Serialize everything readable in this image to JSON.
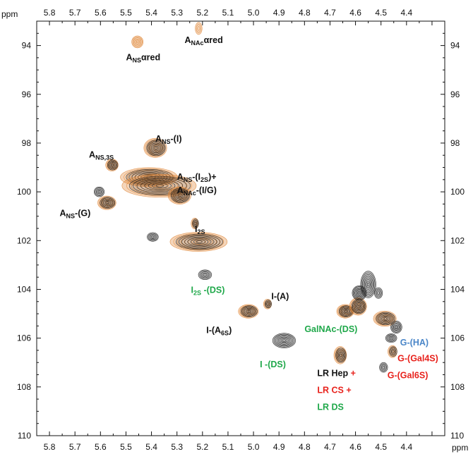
{
  "chart_data": {
    "type": "scatter",
    "title": "",
    "xlabel": "",
    "ylabel": "",
    "x_unit": "ppm",
    "y_unit": "ppm",
    "xlim": [
      5.85,
      4.25
    ],
    "ylim": [
      93,
      110
    ],
    "x_inverted": true,
    "y_inverted": true,
    "x_ticks": [
      "5.8",
      "5.7",
      "5.6",
      "5.5",
      "5.4",
      "5.3",
      "5.2",
      "5.1",
      "5.0",
      "4.9",
      "4.8",
      "4.7",
      "4.6",
      "4.5",
      "4.4"
    ],
    "y_ticks": [
      "94",
      "96",
      "98",
      "100",
      "102",
      "104",
      "106",
      "108",
      "110"
    ],
    "x_tick_values": [
      5.8,
      5.7,
      5.6,
      5.5,
      5.4,
      5.3,
      5.2,
      5.1,
      5.0,
      4.9,
      4.8,
      4.7,
      4.6,
      4.5,
      4.4
    ],
    "y_tick_values": [
      94,
      96,
      98,
      100,
      102,
      104,
      106,
      108,
      110
    ],
    "grid": false,
    "colors": {
      "spectrum_black": "#1a1a1a",
      "spectrum_orange": "#e0883a",
      "label_black": "#111111",
      "label_green": "#1fa84a",
      "label_red": "#e8221c",
      "label_blue": "#4a86c8"
    },
    "peaks": [
      {
        "x": 5.455,
        "y": 93.85,
        "w": 0.02,
        "h": 0.22,
        "overlay": "orange"
      },
      {
        "x": 5.215,
        "y": 93.3,
        "w": 0.012,
        "h": 0.22,
        "overlay": "orange"
      },
      {
        "x": 5.385,
        "y": 98.2,
        "w": 0.04,
        "h": 0.35,
        "overlay": "both"
      },
      {
        "x": 5.555,
        "y": 98.9,
        "w": 0.022,
        "h": 0.22,
        "overlay": "both"
      },
      {
        "x": 5.605,
        "y": 100.0,
        "w": 0.02,
        "h": 0.2,
        "overlay": "black"
      },
      {
        "x": 5.575,
        "y": 100.45,
        "w": 0.032,
        "h": 0.25,
        "overlay": "both"
      },
      {
        "x": 5.41,
        "y": 99.4,
        "w": 0.1,
        "h": 0.35,
        "overlay": "both"
      },
      {
        "x": 5.37,
        "y": 99.75,
        "w": 0.13,
        "h": 0.42,
        "overlay": "both"
      },
      {
        "x": 5.29,
        "y": 100.15,
        "w": 0.04,
        "h": 0.32,
        "overlay": "both"
      },
      {
        "x": 5.395,
        "y": 101.85,
        "w": 0.022,
        "h": 0.18,
        "overlay": "black"
      },
      {
        "x": 5.23,
        "y": 101.3,
        "w": 0.013,
        "h": 0.2,
        "overlay": "both"
      },
      {
        "x": 5.215,
        "y": 102.05,
        "w": 0.1,
        "h": 0.35,
        "overlay": "both"
      },
      {
        "x": 5.19,
        "y": 103.4,
        "w": 0.026,
        "h": 0.2,
        "overlay": "black"
      },
      {
        "x": 5.02,
        "y": 104.9,
        "w": 0.035,
        "h": 0.25,
        "overlay": "both"
      },
      {
        "x": 4.945,
        "y": 104.6,
        "w": 0.014,
        "h": 0.18,
        "overlay": "both"
      },
      {
        "x": 4.88,
        "y": 106.1,
        "w": 0.045,
        "h": 0.3,
        "overlay": "black"
      },
      {
        "x": 4.66,
        "y": 106.7,
        "w": 0.022,
        "h": 0.32,
        "overlay": "both"
      },
      {
        "x": 4.64,
        "y": 104.9,
        "w": 0.03,
        "h": 0.25,
        "overlay": "both"
      },
      {
        "x": 4.59,
        "y": 104.7,
        "w": 0.03,
        "h": 0.32,
        "overlay": "both"
      },
      {
        "x": 4.55,
        "y": 103.8,
        "w": 0.03,
        "h": 0.55,
        "overlay": "black"
      },
      {
        "x": 4.585,
        "y": 104.15,
        "w": 0.028,
        "h": 0.3,
        "overlay": "black"
      },
      {
        "x": 4.51,
        "y": 104.15,
        "w": 0.016,
        "h": 0.22,
        "overlay": "black"
      },
      {
        "x": 4.485,
        "y": 105.2,
        "w": 0.04,
        "h": 0.28,
        "overlay": "both"
      },
      {
        "x": 4.44,
        "y": 105.55,
        "w": 0.022,
        "h": 0.25,
        "overlay": "black"
      },
      {
        "x": 4.46,
        "y": 106.0,
        "w": 0.022,
        "h": 0.18,
        "overlay": "black"
      },
      {
        "x": 4.455,
        "y": 106.55,
        "w": 0.016,
        "h": 0.22,
        "overlay": "both"
      },
      {
        "x": 4.49,
        "y": 107.2,
        "w": 0.016,
        "h": 0.2,
        "overlay": "black"
      }
    ],
    "annotations": [
      {
        "x": 5.27,
        "y": 93.9,
        "parts": [
          [
            "A",
            ""
          ],
          [
            "NAc",
            "sub"
          ],
          [
            "αred",
            ""
          ]
        ],
        "color": "label_black"
      },
      {
        "x": 5.5,
        "y": 94.6,
        "parts": [
          [
            "A",
            ""
          ],
          [
            "NS",
            "sub"
          ],
          [
            "αred",
            ""
          ]
        ],
        "color": "label_black"
      },
      {
        "x": 5.385,
        "y": 97.95,
        "parts": [
          [
            "A",
            ""
          ],
          [
            "NS",
            "sub"
          ],
          [
            "-(I)",
            ""
          ]
        ],
        "color": "label_black"
      },
      {
        "x": 5.645,
        "y": 98.6,
        "parts": [
          [
            "A",
            ""
          ],
          [
            "NS,3S",
            "sub"
          ]
        ],
        "color": "label_black"
      },
      {
        "x": 5.3,
        "y": 99.5,
        "parts": [
          [
            "A",
            ""
          ],
          [
            "NS",
            "sub"
          ],
          [
            "-(I",
            ""
          ],
          [
            "2S",
            "sub"
          ],
          [
            ")+",
            ""
          ]
        ],
        "color": "label_black"
      },
      {
        "x": 5.3,
        "y": 100.05,
        "parts": [
          [
            "A",
            ""
          ],
          [
            "NAc",
            "sub"
          ],
          [
            "-(I/G)",
            ""
          ]
        ],
        "color": "label_black"
      },
      {
        "x": 5.76,
        "y": 101.0,
        "parts": [
          [
            "A",
            ""
          ],
          [
            "NS",
            "sub"
          ],
          [
            "-(G)",
            ""
          ]
        ],
        "color": "label_black"
      },
      {
        "x": 5.23,
        "y": 101.65,
        "parts": [
          [
            "I",
            ""
          ],
          [
            "2S",
            "sub"
          ]
        ],
        "color": "label_black"
      },
      {
        "x": 5.245,
        "y": 104.15,
        "parts": [
          [
            "I",
            ""
          ],
          [
            "2S",
            "sub"
          ],
          [
            " -(DS)",
            ""
          ]
        ],
        "color": "label_green"
      },
      {
        "x": 4.93,
        "y": 104.4,
        "parts": [
          [
            "I-(A)",
            ""
          ]
        ],
        "color": "label_black"
      },
      {
        "x": 5.185,
        "y": 105.8,
        "parts": [
          [
            "I-(A",
            ""
          ],
          [
            "6S",
            "sub"
          ],
          [
            ")",
            ""
          ]
        ],
        "color": "label_black"
      },
      {
        "x": 4.8,
        "y": 105.75,
        "parts": [
          [
            "GalNAc-(DS)",
            ""
          ]
        ],
        "color": "label_green"
      },
      {
        "x": 4.975,
        "y": 107.2,
        "parts": [
          [
            "I -(DS)",
            ""
          ]
        ],
        "color": "label_green"
      },
      {
        "x": 4.75,
        "y": 107.55,
        "parts": [
          [
            "LR Hep ",
            ""
          ],
          [
            "+",
            "red"
          ]
        ],
        "color": "label_black"
      },
      {
        "x": 4.75,
        "y": 108.25,
        "parts": [
          [
            "LR CS +",
            ""
          ]
        ],
        "color": "label_red"
      },
      {
        "x": 4.75,
        "y": 108.95,
        "parts": [
          [
            "LR DS",
            ""
          ]
        ],
        "color": "label_green"
      },
      {
        "x": 4.425,
        "y": 106.3,
        "parts": [
          [
            "G-(HA)",
            ""
          ]
        ],
        "color": "label_blue"
      },
      {
        "x": 4.435,
        "y": 106.95,
        "parts": [
          [
            "G-(Gal4S)",
            ""
          ]
        ],
        "color": "label_red"
      },
      {
        "x": 4.475,
        "y": 107.65,
        "parts": [
          [
            "G-(Gal6S)",
            ""
          ]
        ],
        "color": "label_red"
      }
    ]
  }
}
